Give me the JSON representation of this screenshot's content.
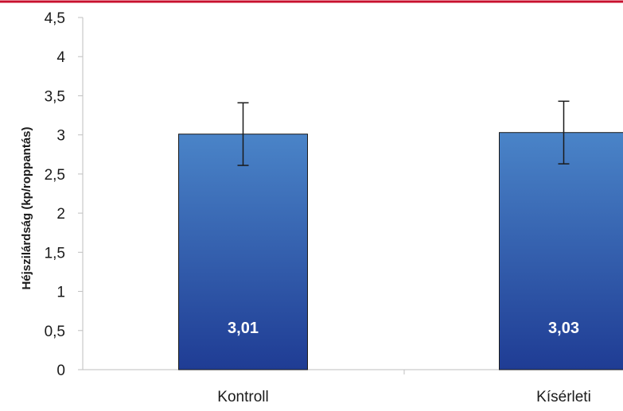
{
  "chart_data": {
    "type": "bar",
    "categories": [
      "Kontroll",
      "Kísérleti"
    ],
    "values": [
      3.01,
      3.03
    ],
    "error": [
      0.4,
      0.4
    ],
    "data_labels": [
      "3,01",
      "3,03"
    ],
    "title": "",
    "xlabel": "",
    "ylabel": "Héjszilárdság (kp/roppantás)",
    "ylim": [
      0,
      4.5
    ],
    "y_ticks": [
      0,
      0.5,
      1,
      1.5,
      2,
      2.5,
      3,
      3.5,
      4,
      4.5
    ],
    "y_tick_labels": [
      "0",
      "0,5",
      "1",
      "1,5",
      "2",
      "2,5",
      "3",
      "3,5",
      "4",
      "4,5"
    ],
    "grid": false,
    "legend": "none",
    "colors": {
      "bar_top": "#4a84c8",
      "bar_bottom": "#1f3c94",
      "bar_border": "#1a1a1a",
      "top_rule": "#c8102e",
      "axis": "#bfbfbf"
    }
  }
}
